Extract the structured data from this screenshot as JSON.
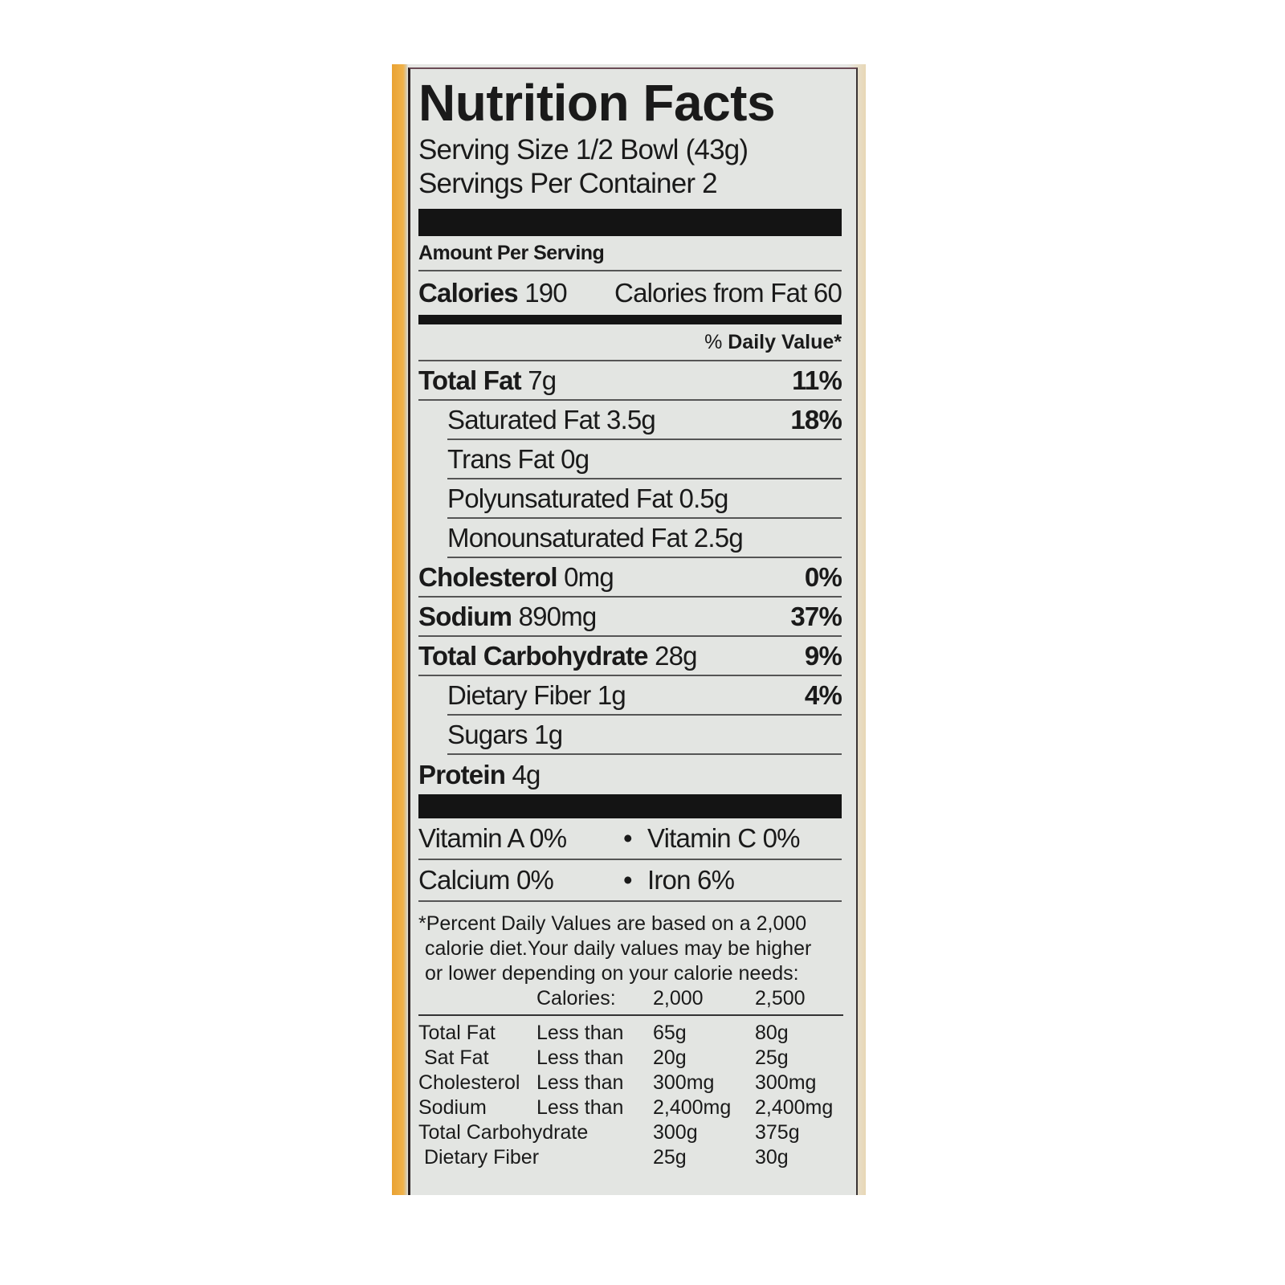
{
  "title": "Nutrition Facts",
  "serving_size": "Serving Size 1/2 Bowl (43g)",
  "servings_per_container": "Servings Per Container 2",
  "amount_per_serving": "Amount Per Serving",
  "calories": {
    "label": "Calories",
    "value": "190",
    "from_fat_label": "Calories from Fat",
    "from_fat_value": "60"
  },
  "daily_value_header": {
    "pct": "%",
    "label": "Daily Value*"
  },
  "nutrients": [
    {
      "name": "Total Fat",
      "amount": "7g",
      "dv": "11%"
    },
    {
      "name": "Saturated Fat",
      "amount": "3.5g",
      "dv": "18%"
    },
    {
      "name": "Trans Fat",
      "amount": "0g",
      "dv": ""
    },
    {
      "name": "Polyunsaturated Fat",
      "amount": "0.5g",
      "dv": ""
    },
    {
      "name": "Monounsaturated Fat",
      "amount": "2.5g",
      "dv": ""
    },
    {
      "name": "Cholesterol",
      "amount": "0mg",
      "dv": "0%"
    },
    {
      "name": "Sodium",
      "amount": "890mg",
      "dv": "37%"
    },
    {
      "name": "Total Carbohydrate",
      "amount": "28g",
      "dv": "9%"
    },
    {
      "name": "Dietary Fiber",
      "amount": "1g",
      "dv": "4%"
    },
    {
      "name": "Sugars",
      "amount": "1g",
      "dv": ""
    },
    {
      "name": "Protein",
      "amount": "4g",
      "dv": ""
    }
  ],
  "vitamins": [
    {
      "left": "Vitamin A 0%",
      "right": "Vitamin C 0%"
    },
    {
      "left": "Calcium 0%",
      "right": "Iron 6%"
    }
  ],
  "bullet": "•",
  "footnote": [
    "*Percent Daily Values are based on a 2,000",
    "calorie diet.Your daily values may be higher",
    "or lower depending on your calorie needs:"
  ],
  "reference_table": {
    "header": [
      "",
      "Calories:",
      "2,000",
      "2,500"
    ],
    "rows": [
      [
        "Total Fat",
        "Less than",
        "65g",
        "80g"
      ],
      [
        " Sat Fat",
        "Less than",
        "20g",
        "25g"
      ],
      [
        "Cholesterol",
        "Less than",
        "300mg",
        "300mg"
      ],
      [
        "Sodium",
        "Less than",
        "2,400mg",
        "2,400mg"
      ],
      [
        "Total Carbohydrate",
        "",
        "300g",
        "375g"
      ],
      [
        " Dietary Fiber",
        "",
        "25g",
        "30g"
      ]
    ]
  }
}
